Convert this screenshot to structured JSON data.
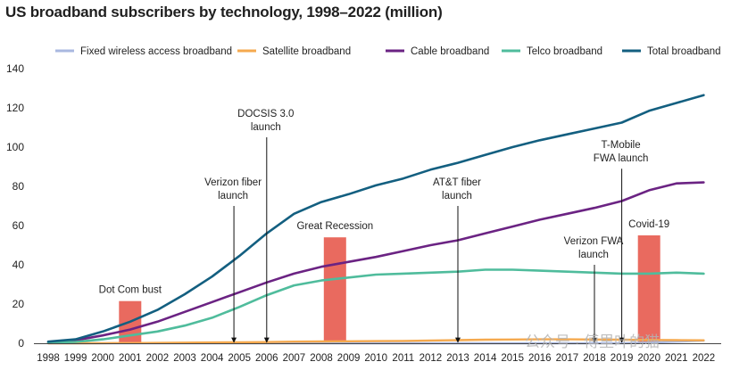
{
  "chart_data": {
    "type": "line",
    "title": "US broadband subscribers by technology, 1998–2022 (million)",
    "xlabel": "",
    "ylabel": "",
    "ylim": [
      0,
      140
    ],
    "yticks": [
      0,
      20,
      40,
      60,
      80,
      100,
      120,
      140
    ],
    "grid": false,
    "legend_position": "top",
    "x": [
      "1998",
      "1999",
      "2000",
      "2001",
      "2002",
      "2003",
      "2004",
      "2005",
      "2006",
      "2007",
      "2008",
      "2009",
      "2010",
      "2011",
      "2012",
      "2013",
      "2014",
      "2015",
      "2016",
      "2017",
      "2018",
      "2019",
      "2020",
      "2021",
      "2022"
    ],
    "series": [
      {
        "name": "Fixed wireless access broadband",
        "color": "#a9b8e0",
        "values": [
          0,
          0,
          0,
          0,
          0,
          0,
          0,
          0,
          0,
          0,
          0,
          0,
          0,
          0,
          0,
          0,
          0,
          0,
          0,
          0,
          0,
          0,
          0.3,
          0.8,
          1.3
        ]
      },
      {
        "name": "Satellite broadband",
        "color": "#f5a94e",
        "values": [
          0,
          0,
          0.05,
          0.1,
          0.2,
          0.3,
          0.4,
          0.5,
          0.6,
          0.8,
          0.9,
          1.0,
          1.1,
          1.2,
          1.4,
          1.6,
          1.8,
          1.9,
          2.0,
          2.0,
          1.9,
          1.8,
          1.7,
          1.6,
          1.5
        ]
      },
      {
        "name": "Cable broadband",
        "color": "#6b2383",
        "values": [
          0.5,
          1.5,
          4,
          7,
          11,
          16,
          21,
          26,
          31,
          35.5,
          39,
          41.5,
          44,
          47,
          50,
          52.5,
          56,
          59.5,
          63,
          66,
          69,
          72.5,
          78,
          81.5,
          82
        ]
      },
      {
        "name": "Telco broadband",
        "color": "#4fbc9c",
        "values": [
          0.3,
          0.7,
          2,
          4,
          6,
          9,
          13,
          18.5,
          24.5,
          29.5,
          32,
          33.5,
          35,
          35.5,
          36,
          36.5,
          37.5,
          37.5,
          37,
          36.5,
          36,
          35.5,
          35.5,
          36,
          35.5
        ]
      },
      {
        "name": "Total broadband",
        "color": "#135f80",
        "values": [
          0.8,
          2,
          6,
          11,
          17,
          25,
          34,
          44.5,
          56,
          66,
          72,
          76,
          80.5,
          84,
          88.5,
          92,
          96,
          100,
          103.5,
          106.5,
          109.5,
          112.5,
          118.5,
          122.5,
          126.5
        ]
      }
    ],
    "events": [
      {
        "label": "Dot Com bust",
        "type": "bar",
        "year": "2001",
        "value": 21.5
      },
      {
        "label": "Great Recession",
        "type": "bar",
        "year": "2008.5",
        "value": 54
      },
      {
        "label": "Covid-19",
        "type": "bar",
        "year": "2020",
        "value": 55
      }
    ],
    "annotations": [
      {
        "lines": [
          "Verizon fiber",
          "launch"
        ],
        "year": 2004.8,
        "arrow_top": 70
      },
      {
        "lines": [
          "DOCSIS 3.0",
          "launch"
        ],
        "year": 2006,
        "arrow_top": 105
      },
      {
        "lines": [
          "AT&T fiber",
          "launch"
        ],
        "year": 2013,
        "arrow_top": 70
      },
      {
        "lines": [
          "Verizon FWA",
          "launch"
        ],
        "year": 2018,
        "arrow_top": 40
      },
      {
        "lines": [
          "T-Mobile",
          "FWA launch"
        ],
        "year": 2019,
        "arrow_top": 89
      }
    ]
  },
  "watermark": "公众号 · 傅里叶的猫"
}
